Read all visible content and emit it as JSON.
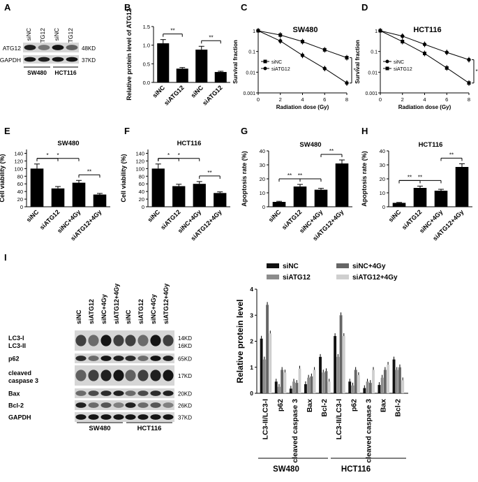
{
  "panel_letters": [
    "A",
    "B",
    "C",
    "D",
    "E",
    "F",
    "G",
    "H",
    "I"
  ],
  "blots": {
    "A": {
      "lanes": [
        "siNC",
        "siATG12",
        "siNC",
        "siATG12"
      ],
      "rows": [
        {
          "name": "ATG12",
          "kd": "48KD"
        },
        {
          "name": "GAPDH",
          "kd": "37KD"
        }
      ],
      "groups": [
        "SW480",
        "HCT116"
      ]
    },
    "I": {
      "lanes": [
        "siNC",
        "siATG12",
        "siNC+4Gy",
        "siATG12+4Gy"
      ],
      "rows": [
        {
          "name": "LC3-I\nLC3-II",
          "kd": "14KD\n16KD"
        },
        {
          "name": "p62",
          "kd": "65KD"
        },
        {
          "name": "cleaved\ncaspase 3",
          "kd": "17KD"
        },
        {
          "name": "Bax",
          "kd": "20KD"
        },
        {
          "name": "Bcl-2",
          "kd": "26KD"
        },
        {
          "name": "GAPDH",
          "kd": "37KD"
        }
      ],
      "groups": [
        "SW480",
        "HCT116"
      ]
    }
  },
  "chart_data": [
    {
      "panel": "B",
      "type": "bar",
      "categories": [
        "siNC",
        "siATG12",
        "siNC",
        "siATG12"
      ],
      "values": [
        1.05,
        0.37,
        0.88,
        0.28
      ],
      "errors": [
        0.1,
        0.03,
        0.09,
        0.02
      ],
      "ylabel": "Relative protein level of ATG12",
      "ylim": [
        0,
        1.5
      ],
      "yticks": [
        "0.0",
        "0.5",
        "1.0",
        "1.5"
      ],
      "sig": [
        {
          "a": 0,
          "b": 1,
          "label": "**"
        },
        {
          "a": 2,
          "b": 3,
          "label": "**"
        }
      ]
    },
    {
      "panel": "C",
      "type": "line",
      "title": "SW480",
      "xlabel": "Radiation dose (Gy)",
      "ylabel": "Survival fraction",
      "x": [
        0,
        2,
        4,
        6,
        8
      ],
      "log_y": true,
      "xticks": [
        "0",
        "2",
        "4",
        "6",
        "8"
      ],
      "yticks": [
        "0.001",
        "0.01",
        "0.1",
        "1"
      ],
      "series": [
        {
          "name": "siNC",
          "marker": "square",
          "values": [
            1,
            0.62,
            0.3,
            0.12,
            0.05
          ]
        },
        {
          "name": "siATG12",
          "marker": "circle",
          "values": [
            1,
            0.32,
            0.065,
            0.015,
            0.003
          ]
        }
      ],
      "sig_label": "*"
    },
    {
      "panel": "D",
      "type": "line",
      "title": "HCT116",
      "xlabel": "Radiation dose (Gy)",
      "ylabel": "Survival fraction",
      "x": [
        0,
        2,
        4,
        6,
        8
      ],
      "log_y": true,
      "xticks": [
        "0",
        "2",
        "4",
        "6",
        "8"
      ],
      "yticks": [
        "0.001",
        "0.01",
        "0.1",
        "1"
      ],
      "series": [
        {
          "name": "siNC",
          "marker": "circle",
          "values": [
            1,
            0.55,
            0.22,
            0.09,
            0.04
          ]
        },
        {
          "name": "siATG12",
          "marker": "square",
          "values": [
            1,
            0.3,
            0.08,
            0.016,
            0.003
          ]
        }
      ],
      "sig_label": "*"
    },
    {
      "panel": "E",
      "type": "bar",
      "title": "SW480",
      "categories": [
        "siNC",
        "siATG12",
        "siNC+4Gy",
        "siATG12+4Gy"
      ],
      "values": [
        100,
        48,
        63,
        32
      ],
      "errors": [
        12,
        5,
        6,
        3
      ],
      "ylabel": "Cell viability (%)",
      "ylim": [
        0,
        150
      ],
      "yticks": [
        "0",
        "20",
        "40",
        "60",
        "80",
        "100",
        "120",
        "140"
      ],
      "sig": [
        {
          "a": 0,
          "b": 1,
          "label": "*"
        },
        {
          "a": 0,
          "b": 2,
          "label": "*"
        },
        {
          "a": 2,
          "b": 3,
          "label": "**"
        }
      ]
    },
    {
      "panel": "F",
      "type": "bar",
      "title": "HCT116",
      "categories": [
        "siNC",
        "siATG12",
        "siNC+4Gy",
        "siATG12+4Gy"
      ],
      "values": [
        100,
        54,
        60,
        36
      ],
      "errors": [
        12,
        5,
        6,
        3
      ],
      "ylabel": "Cell viability (%)",
      "ylim": [
        0,
        150
      ],
      "yticks": [
        "0",
        "20",
        "40",
        "60",
        "80",
        "100",
        "120",
        "140"
      ],
      "sig": [
        {
          "a": 0,
          "b": 1,
          "label": "*"
        },
        {
          "a": 0,
          "b": 2,
          "label": "*"
        },
        {
          "a": 2,
          "b": 3,
          "label": "**"
        }
      ]
    },
    {
      "panel": "G",
      "type": "bar",
      "title": "SW480",
      "categories": [
        "siNC",
        "siATG12",
        "siNC+4Gy",
        "siATG12+4Gy"
      ],
      "values": [
        3.5,
        14.5,
        12.2,
        31
      ],
      "errors": [
        0.4,
        1.5,
        1.0,
        2.5
      ],
      "ylabel": "Apoptosis rate (%)",
      "ylim": [
        0,
        40
      ],
      "yticks": [
        "0",
        "10",
        "20",
        "30",
        "40"
      ],
      "sig": [
        {
          "a": 0,
          "b": 1,
          "label": "**"
        },
        {
          "a": 0,
          "b": 2,
          "label": "**"
        },
        {
          "a": 2,
          "b": 3,
          "label": "**"
        }
      ]
    },
    {
      "panel": "H",
      "type": "bar",
      "title": "HCT116",
      "categories": [
        "siNC",
        "siATG12",
        "siNC+4Gy",
        "siATG12+4Gy"
      ],
      "values": [
        2.8,
        13.5,
        11.5,
        28.5
      ],
      "errors": [
        0.3,
        1.3,
        1.0,
        2.3
      ],
      "ylabel": "Apoptosis rate (%)",
      "ylim": [
        0,
        40
      ],
      "yticks": [
        "0",
        "10",
        "20",
        "30",
        "40"
      ],
      "sig": [
        {
          "a": 0,
          "b": 1,
          "label": "**"
        },
        {
          "a": 0,
          "b": 2,
          "label": "**"
        },
        {
          "a": 2,
          "b": 3,
          "label": "**"
        }
      ]
    },
    {
      "panel": "I",
      "type": "bar",
      "ylabel": "Relative protein level",
      "ylim": [
        0,
        4
      ],
      "yticks": [
        "0",
        "1",
        "2",
        "3",
        "4"
      ],
      "legend": [
        "siNC",
        "siATG12",
        "siNC+4Gy",
        "siATG12+4Gy"
      ],
      "colors": [
        "#111111",
        "#8c8c8c",
        "#666666",
        "#cfcfcf"
      ],
      "categories": [
        "LC3-II/LC3-I",
        "p62",
        "cleaved caspase 3",
        "Bax",
        "Bcl-2",
        "LC3-II/LC3-I",
        "p62",
        "cleaved caspase 3",
        "Bax",
        "Bcl-2"
      ],
      "groups": [
        "SW480",
        "HCT116"
      ],
      "series": [
        {
          "name": "siNC",
          "values": [
            2.1,
            0.45,
            0.18,
            0.35,
            1.4,
            2.2,
            0.45,
            0.2,
            0.32,
            1.3
          ]
        },
        {
          "name": "siATG12",
          "values": [
            1.3,
            0.25,
            0.45,
            0.6,
            0.8,
            1.4,
            0.3,
            0.45,
            0.6,
            0.9
          ]
        },
        {
          "name": "siNC+4Gy",
          "values": [
            3.4,
            0.9,
            0.4,
            0.65,
            0.85,
            3.0,
            0.9,
            0.4,
            0.9,
            1.0
          ]
        },
        {
          "name": "siATG12+4Gy",
          "values": [
            2.3,
            0.8,
            0.95,
            0.9,
            0.45,
            2.2,
            0.7,
            0.9,
            1.1,
            0.5
          ]
        }
      ]
    }
  ]
}
